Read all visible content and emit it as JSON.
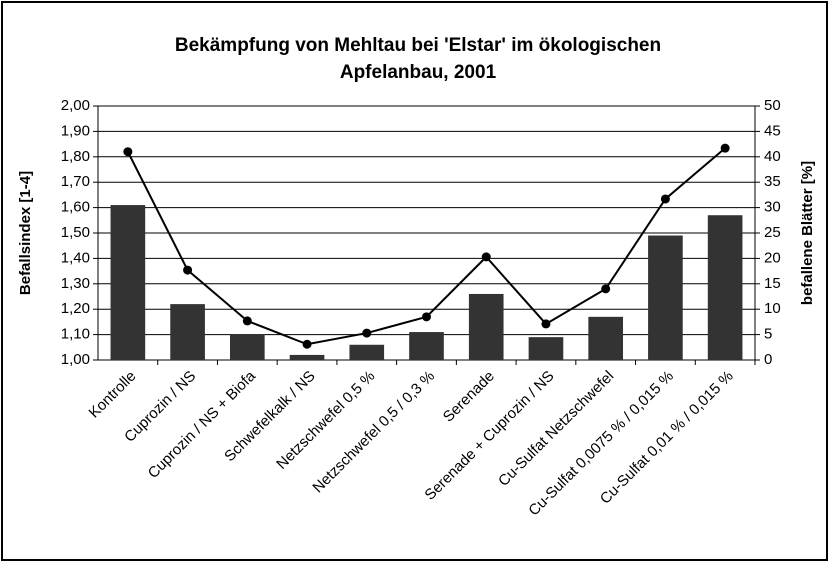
{
  "chart_data": {
    "type": "bar_line",
    "title": [
      "Bekämpfung von Mehltau bei 'Elstar' im ökologischen",
      "Apfelanbau, 2001"
    ],
    "y_label": "Befallsindex [1-4]",
    "y2_label": "befallene Blätter [%]",
    "categories": [
      "Kontrolle",
      "Cuprozin / NS",
      "Cuprozin / NS + Biofa",
      "Schwefelkalk / NS",
      "Netzschwefel 0,5 %",
      "Netzschwefel 0,5 / 0,3 %",
      "Serenade",
      "Serenade + Cuprozin / NS",
      "Cu-Sulfat Netzschwefel",
      "Cu-Sulfat 0,0075 % / 0,015 %",
      "Cu-Sulfat 0,01 % / 0,015 %"
    ],
    "series": [
      {
        "type": "bar",
        "color": "#333333",
        "values": [
          1.61,
          1.22,
          1.1,
          1.02,
          1.06,
          1.11,
          1.26,
          1.09,
          1.17,
          1.49,
          1.57
        ]
      },
      {
        "type": "line",
        "axis": "y2",
        "color": "#000000",
        "values": [
          41,
          17.7,
          7.7,
          3.1,
          5.3,
          8.5,
          20.3,
          7.1,
          14,
          31.7,
          41.7
        ]
      }
    ],
    "ylim": [
      1.0,
      2.0
    ],
    "yticks": [
      {
        "value": 1.0,
        "label": "1,00"
      },
      {
        "value": 1.1,
        "label": "1,10"
      },
      {
        "value": 1.2,
        "label": "1,20"
      },
      {
        "value": 1.3,
        "label": "1,30"
      },
      {
        "value": 1.4,
        "label": "1,40"
      },
      {
        "value": 1.5,
        "label": "1,50"
      },
      {
        "value": 1.6,
        "label": "1,60"
      },
      {
        "value": 1.7,
        "label": "1,70"
      },
      {
        "value": 1.8,
        "label": "1,80"
      },
      {
        "value": 1.9,
        "label": "1,90"
      },
      {
        "value": 2.0,
        "label": "2,00"
      }
    ],
    "y2lim": [
      0,
      50
    ],
    "y2ticks": [
      0,
      5,
      10,
      15,
      20,
      25,
      30,
      35,
      40,
      45,
      50
    ],
    "grid": true
  }
}
